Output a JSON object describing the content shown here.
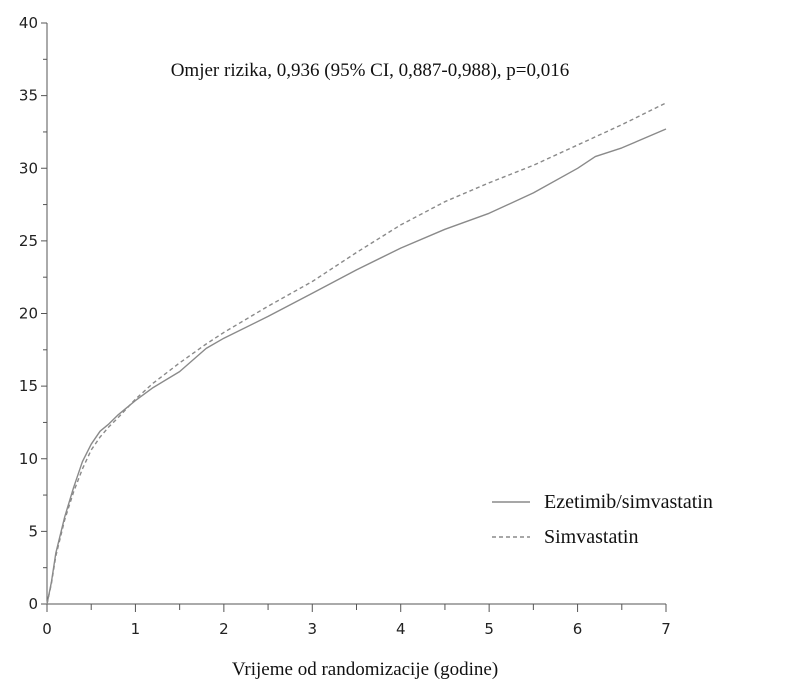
{
  "chart_data": {
    "type": "line",
    "title": "",
    "annotation": "Omjer rizika, 0,936 (95% CI, 0,887-0,988), p=0,016",
    "xlabel": "Vrijeme od randomizacije (godine)",
    "ylabel": "",
    "xlim": [
      0,
      7
    ],
    "ylim": [
      0,
      40
    ],
    "x_ticks": [
      0,
      1,
      2,
      3,
      4,
      5,
      6,
      7
    ],
    "y_ticks": [
      0,
      5,
      10,
      15,
      20,
      25,
      30,
      35,
      40
    ],
    "grid": false,
    "legend_position": "bottom-right",
    "series": [
      {
        "name": "Ezetimib/simvastatin",
        "style": "solid",
        "color": "#8a8a8a",
        "x": [
          0,
          0.05,
          0.1,
          0.2,
          0.3,
          0.4,
          0.5,
          0.6,
          0.7,
          0.8,
          1.0,
          1.2,
          1.5,
          1.8,
          2.0,
          2.5,
          3.0,
          3.5,
          4.0,
          4.5,
          5.0,
          5.5,
          6.0,
          6.2,
          6.5,
          7.0
        ],
        "y": [
          0,
          1.5,
          3.5,
          6.0,
          8.0,
          9.8,
          11.0,
          11.9,
          12.4,
          13.0,
          14.0,
          14.9,
          16.0,
          17.6,
          18.3,
          19.8,
          21.4,
          23.0,
          24.5,
          25.8,
          26.9,
          28.3,
          30.0,
          30.8,
          31.4,
          32.7
        ]
      },
      {
        "name": "Simvastatin",
        "style": "dashed",
        "color": "#8a8a8a",
        "x": [
          0,
          0.05,
          0.1,
          0.2,
          0.3,
          0.4,
          0.5,
          0.6,
          0.7,
          0.8,
          1.0,
          1.2,
          1.5,
          1.8,
          2.0,
          2.5,
          3.0,
          3.5,
          4.0,
          4.5,
          5.0,
          5.5,
          6.0,
          6.5,
          7.0
        ],
        "y": [
          0,
          1.4,
          3.3,
          5.8,
          7.7,
          9.3,
          10.6,
          11.5,
          12.2,
          12.8,
          14.1,
          15.2,
          16.6,
          17.9,
          18.7,
          20.5,
          22.2,
          24.2,
          26.1,
          27.7,
          29.0,
          30.2,
          31.6,
          33.0,
          34.5
        ]
      }
    ]
  }
}
